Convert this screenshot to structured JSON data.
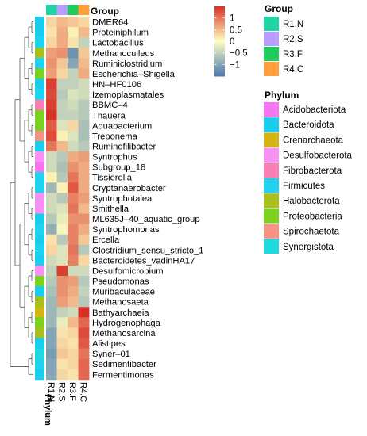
{
  "chart_data": {
    "type": "heatmap",
    "columns": [
      "R1.N",
      "R2.S",
      "R3.F",
      "R4.C"
    ],
    "column_groups": [
      "R1.N",
      "R2.S",
      "R3.F",
      "R4.C"
    ],
    "column_annotation_label": "Group",
    "row_annotation_label": "Phylum",
    "rows": [
      {
        "name": "DMER64",
        "phylum": "Bacteroidota",
        "values": [
          0.3,
          0.5,
          0.4,
          0.3
        ]
      },
      {
        "name": "Proteiniphilum",
        "phylum": "Bacteroidota",
        "values": [
          0.2,
          0.6,
          0.1,
          0.5
        ]
      },
      {
        "name": "Lactobacillus",
        "phylum": "Firmicutes",
        "values": [
          0.3,
          0.6,
          0.2,
          -0.5
        ]
      },
      {
        "name": "Methanoculleus",
        "phylum": "Halobacterota",
        "values": [
          0.7,
          0.8,
          -1.2,
          0.4
        ]
      },
      {
        "name": "Ruminiclostridium",
        "phylum": "Firmicutes",
        "values": [
          0.8,
          0.4,
          -1.0,
          0.5
        ]
      },
      {
        "name": "Escherichia–Shigella",
        "phylum": "Proteobacteria",
        "values": [
          0.7,
          0.3,
          -0.5,
          0.6
        ]
      },
      {
        "name": "HN–HF0106",
        "phylum": "Bacteroidota",
        "values": [
          1.4,
          -0.5,
          -0.5,
          -0.4
        ]
      },
      {
        "name": "Izemoplasmatales",
        "phylum": "Firmicutes",
        "values": [
          1.3,
          -0.6,
          -0.3,
          -0.4
        ]
      },
      {
        "name": "BBMC–4",
        "phylum": "Fibrobacterota",
        "values": [
          1.4,
          -0.5,
          -0.4,
          -0.6
        ]
      },
      {
        "name": "Thauera",
        "phylum": "Proteobacteria",
        "values": [
          1.5,
          -0.5,
          -0.5,
          -0.6
        ]
      },
      {
        "name": "Aquabacterium",
        "phylum": "Proteobacteria",
        "values": [
          1.2,
          -0.3,
          0.3,
          -0.7
        ]
      },
      {
        "name": "Treponema",
        "phylum": "Spirochaetota",
        "values": [
          1.3,
          0.1,
          -0.3,
          -0.7
        ]
      },
      {
        "name": "Ruminofilibacter",
        "phylum": "Bacteroidota",
        "values": [
          1.0,
          0.5,
          -0.4,
          -0.6
        ]
      },
      {
        "name": "Syntrophus",
        "phylum": "Desulfobacterota",
        "values": [
          -0.4,
          -0.6,
          0.6,
          0.7
        ]
      },
      {
        "name": "Subgroup_18",
        "phylum": "Acidobacteriota",
        "values": [
          -0.4,
          -0.7,
          0.8,
          0.6
        ]
      },
      {
        "name": "Tissierella",
        "phylum": "Firmicutes",
        "values": [
          0.1,
          -0.6,
          1.0,
          0.6
        ]
      },
      {
        "name": "Cryptanaerobacter",
        "phylum": "Firmicutes",
        "values": [
          -0.8,
          0.1,
          1.2,
          0.6
        ]
      },
      {
        "name": "Syntrophotalea",
        "phylum": "Desulfobacterota",
        "values": [
          -0.4,
          -0.6,
          0.9,
          0.7
        ]
      },
      {
        "name": "Smithella",
        "phylum": "Desulfobacterota",
        "values": [
          -0.4,
          -0.3,
          1.0,
          0.5
        ]
      },
      {
        "name": "ML635J–40_aquatic_group",
        "phylum": "Bacteroidota",
        "values": [
          -0.6,
          -0.2,
          0.8,
          0.8
        ]
      },
      {
        "name": "Syntrophomonas",
        "phylum": "Firmicutes",
        "values": [
          -0.9,
          -0.1,
          0.9,
          0.6
        ]
      },
      {
        "name": "Ercella",
        "phylum": "Bacteroidota",
        "values": [
          0.2,
          -0.6,
          0.9,
          0.4
        ]
      },
      {
        "name": "Clostridium_sensu_stricto_1",
        "phylum": "Firmicutes",
        "values": [
          0.3,
          -0.3,
          1.0,
          -0.6
        ]
      },
      {
        "name": "Bacteroidetes_vadinHA17",
        "phylum": "Bacteroidota",
        "values": [
          -0.4,
          -0.3,
          0.9,
          0.3
        ]
      },
      {
        "name": "Desulfomicrobium",
        "phylum": "Desulfobacterota",
        "values": [
          -0.5,
          1.4,
          -0.4,
          -0.4
        ]
      },
      {
        "name": "Pseudomonas",
        "phylum": "Proteobacteria",
        "values": [
          -0.6,
          0.8,
          0.7,
          -0.6
        ]
      },
      {
        "name": "Muribaculaceae",
        "phylum": "Bacteroidota",
        "values": [
          -0.7,
          0.8,
          0.6,
          -0.5
        ]
      },
      {
        "name": "Methanosaeta",
        "phylum": "Halobacterota",
        "values": [
          -0.8,
          0.7,
          0.5,
          -0.6
        ]
      },
      {
        "name": "Bathyarchaeia",
        "phylum": "Crenarchaeota",
        "values": [
          -0.8,
          -0.5,
          -0.4,
          1.5
        ]
      },
      {
        "name": "Hydrogenophaga",
        "phylum": "Proteobacteria",
        "values": [
          -0.8,
          -0.2,
          0.5,
          1.1
        ]
      },
      {
        "name": "Methanosarcina",
        "phylum": "Halobacterota",
        "values": [
          -1.0,
          0.2,
          0.3,
          1.3
        ]
      },
      {
        "name": "Alistipes",
        "phylum": "Bacteroidota",
        "values": [
          -1.0,
          0.3,
          0.2,
          1.2
        ]
      },
      {
        "name": "Syner–01",
        "phylum": "Synergistota",
        "values": [
          -1.1,
          0.4,
          0.3,
          1.0
        ]
      },
      {
        "name": "Sedimentibacter",
        "phylum": "Firmicutes",
        "values": [
          -1.0,
          0.2,
          0.3,
          1.1
        ]
      },
      {
        "name": "Fermentimonas",
        "phylum": "Bacteroidota",
        "values": [
          -1.0,
          0.3,
          0.2,
          1.1
        ]
      }
    ],
    "color_scale": {
      "ticks": [
        1,
        0.5,
        0,
        -0.5,
        -1
      ],
      "tick_labels": [
        "1",
        "0.5",
        "0",
        "−0.5",
        "−1"
      ],
      "min": -1.5,
      "max": 1.5,
      "low_color": "#4A79B0",
      "mid_color": "#FFFFBF",
      "high_color": "#D73027"
    },
    "legends": {
      "group": {
        "title": "Group",
        "items": [
          {
            "label": "R1.N",
            "color": "#1FD5A5"
          },
          {
            "label": "R2.S",
            "color": "#B89CFF"
          },
          {
            "label": "R3.F",
            "color": "#1DCC5B"
          },
          {
            "label": "R4.C",
            "color": "#FF9E3A"
          }
        ]
      },
      "phylum": {
        "title": "Phylum",
        "items": [
          {
            "label": "Acidobacteriota",
            "color": "#F674F0"
          },
          {
            "label": "Bacteroidota",
            "color": "#18CDEE"
          },
          {
            "label": "Crenarchaeota",
            "color": "#D2B413"
          },
          {
            "label": "Desulfobacterota",
            "color": "#F991F2"
          },
          {
            "label": "Fibrobacterota",
            "color": "#FB7FB5"
          },
          {
            "label": "Firmicutes",
            "color": "#1FD3F0"
          },
          {
            "label": "Halobacterota",
            "color": "#A9BE1F"
          },
          {
            "label": "Proteobacteria",
            "color": "#7CD11F"
          },
          {
            "label": "Spirochaetota",
            "color": "#F49480"
          },
          {
            "label": "Synergistota",
            "color": "#1ED9E0"
          }
        ]
      }
    }
  }
}
